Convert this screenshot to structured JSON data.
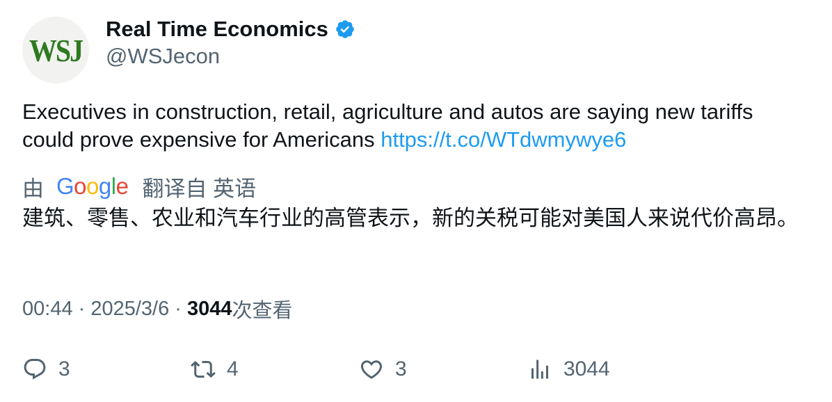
{
  "author": {
    "avatar_text": "WSJ",
    "display_name": "Real Time Economics",
    "handle": "@WSJecon",
    "verified": true
  },
  "tweet": {
    "text": "Executives in construction, retail, agriculture and autos are saying new tariffs could prove expensive for Americans ",
    "link": "https://t.co/WTdwmywye6"
  },
  "translation": {
    "prefix": "由",
    "provider_letters": [
      "G",
      "o",
      "o",
      "g",
      "l",
      "e"
    ],
    "provider_colors": [
      "#4285F4",
      "#EA4335",
      "#FBBC05",
      "#4285F4",
      "#34A853",
      "#EA4335"
    ],
    "suffix": "翻译自 英语",
    "text": "建筑、零售、农业和汽车行业的高管表示，新的关税可能对美国人来说代价高昂。"
  },
  "meta": {
    "time": "00:44",
    "separator": " · ",
    "date": "2025/3/6",
    "views_count": "3044",
    "views_label": "次查看"
  },
  "actions": {
    "replies": "3",
    "retweets": "4",
    "likes": "3",
    "views": "3044"
  },
  "colors": {
    "text_primary": "#0f1419",
    "text_secondary": "#536471",
    "link": "#1d9bf0",
    "verified": "#1d9bf0",
    "avatar_logo": "#2d7a1f"
  }
}
